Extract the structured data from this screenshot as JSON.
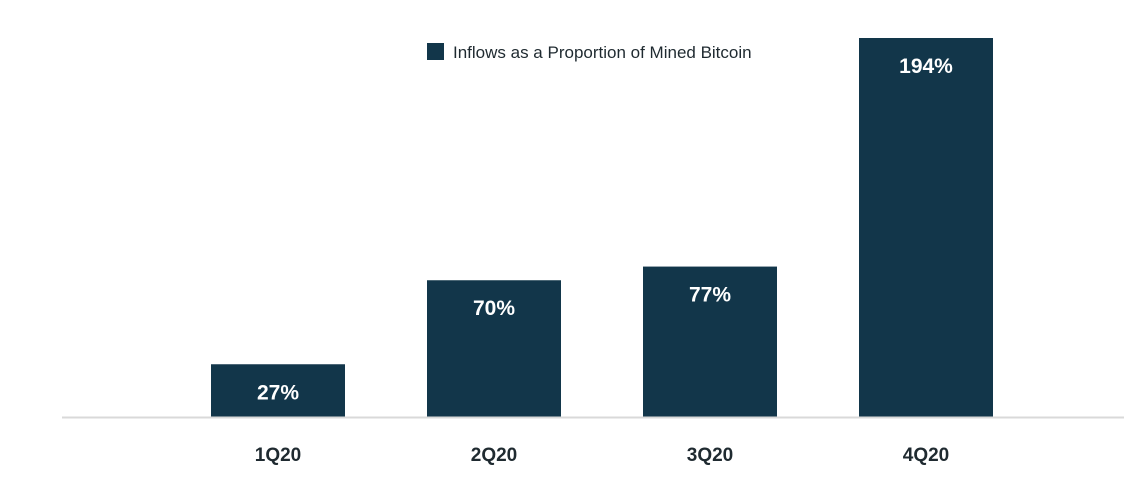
{
  "chart_data": {
    "type": "bar",
    "title": "",
    "xlabel": "",
    "ylabel": "",
    "categories": [
      "1Q20",
      "2Q20",
      "3Q20",
      "4Q20"
    ],
    "series": [
      {
        "name": "Inflows as a Proportion of Mined Bitcoin",
        "values": [
          27,
          70,
          77,
          194
        ],
        "labels": [
          "27%",
          "70%",
          "77%",
          "194%"
        ],
        "color": "#12364a"
      }
    ],
    "ylim": [
      0,
      194
    ],
    "grid": false,
    "legend": "top-center"
  }
}
